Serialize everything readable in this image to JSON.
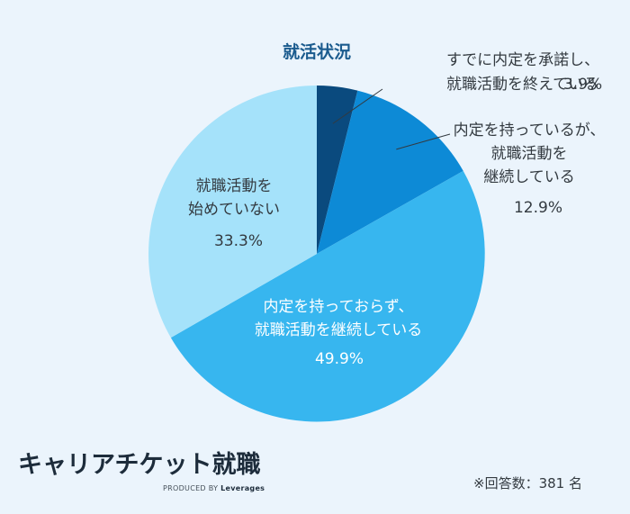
{
  "chart_data": {
    "type": "pie",
    "title": "就活状況",
    "slices": [
      {
        "label": "すでに内定を承諾し、就職活動を終えている",
        "lines": [
          "すでに内定を承諾し、",
          "就職活動を終えている"
        ],
        "value": 3.9,
        "value_label": "3.9%",
        "color": "#0a4a7e"
      },
      {
        "label": "内定を持っているが、就職活動を継続している",
        "lines": [
          "内定を持っているが、",
          "就職活動を",
          "継続している"
        ],
        "value": 12.9,
        "value_label": "12.9%",
        "color": "#0d8ad6"
      },
      {
        "label": "内定を持っておらず、就職活動を継続している",
        "lines": [
          "内定を持っておらず、",
          "就職活動を継続している"
        ],
        "value": 49.9,
        "value_label": "49.9%",
        "color": "#37b6ef"
      },
      {
        "label": "就職活動を始めていない",
        "lines": [
          "就職活動を",
          "始めていない"
        ],
        "value": 33.3,
        "value_label": "33.3%",
        "color": "#a5e2fa"
      }
    ],
    "start_angle": "12 o'clock",
    "direction": "clockwise",
    "legend": "none"
  },
  "brand": {
    "name": "キャリアチケット就職",
    "tagline_prefix": "PRODUCED BY",
    "tagline_name": "Leverages"
  },
  "footnote": "※回答数：381 名"
}
